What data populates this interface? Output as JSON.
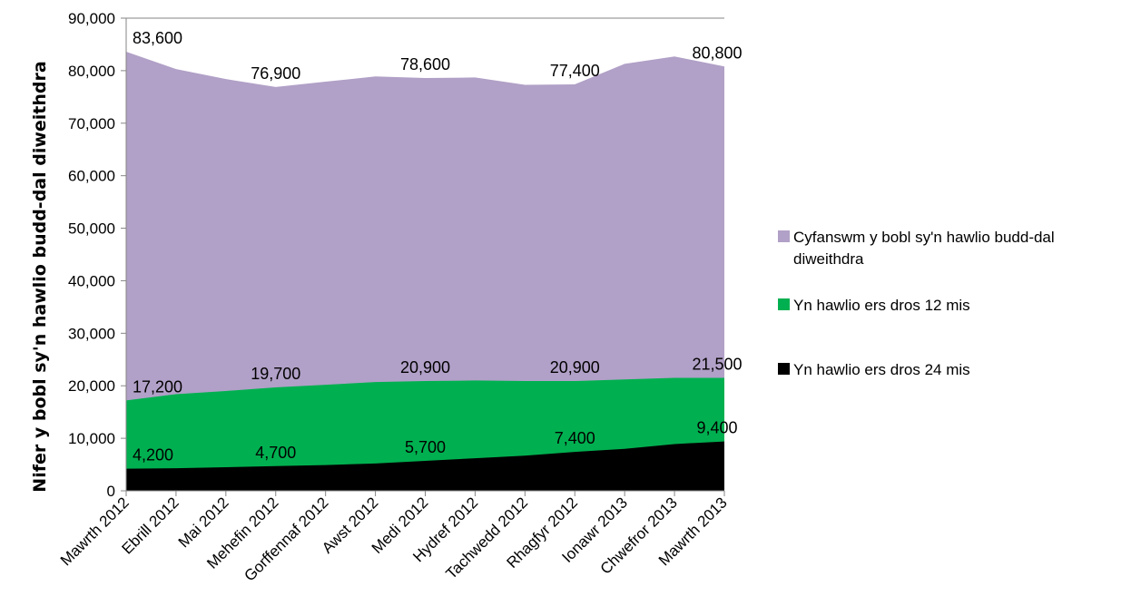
{
  "chart_data": {
    "type": "area",
    "ylabel": "Nifer y bobl sy'n hawlio budd-dal diweithdra",
    "xlabel": "",
    "ylim": [
      0,
      90000
    ],
    "yticks": [
      0,
      10000,
      20000,
      30000,
      40000,
      50000,
      60000,
      70000,
      80000,
      90000
    ],
    "ytick_labels": [
      "0",
      "10,000",
      "20,000",
      "30,000",
      "40,000",
      "50,000",
      "60,000",
      "70,000",
      "80,000",
      "90,000"
    ],
    "categories": [
      "Mawrth 2012",
      "Ebrill 2012",
      "Mai 2012",
      "Mehefin 2012",
      "Gorffennaf 2012",
      "Awst 2012",
      "Medi 2012",
      "Hydref 2012",
      "Tachwedd 2012",
      "Rhagfyr 2012",
      "Ionawr 2013",
      "Chwefror 2013",
      "Mawrth 2013"
    ],
    "grid": "top border line only",
    "legend_position": "right",
    "series": [
      {
        "name": "Cyfanswm y bobl sy'n hawlio budd-dal diweithdra",
        "color": "#b1a0c7",
        "values": [
          83600,
          80300,
          78400,
          76900,
          77900,
          78900,
          78600,
          78700,
          77300,
          77400,
          81300,
          82700,
          80800
        ],
        "labels": [
          {
            "index": 0,
            "text": "83,600"
          },
          {
            "index": 3,
            "text": "76,900"
          },
          {
            "index": 6,
            "text": "78,600"
          },
          {
            "index": 9,
            "text": "77,400"
          },
          {
            "index": 12,
            "text": "80,800"
          }
        ]
      },
      {
        "name": "Yn hawlio ers dros 12 mis",
        "color": "#00b050",
        "values": [
          17200,
          18400,
          19000,
          19700,
          20200,
          20700,
          20900,
          21000,
          20900,
          20900,
          21200,
          21500,
          21500
        ],
        "labels": [
          {
            "index": 0,
            "text": "17,200"
          },
          {
            "index": 3,
            "text": "19,700"
          },
          {
            "index": 6,
            "text": "20,900"
          },
          {
            "index": 9,
            "text": "20,900"
          },
          {
            "index": 12,
            "text": "21,500"
          }
        ]
      },
      {
        "name": "Yn hawlio ers dros 24 mis",
        "color": "#000000",
        "values": [
          4200,
          4300,
          4500,
          4700,
          4900,
          5200,
          5700,
          6200,
          6700,
          7400,
          8000,
          8900,
          9400
        ],
        "labels": [
          {
            "index": 0,
            "text": "4,200"
          },
          {
            "index": 3,
            "text": "4,700"
          },
          {
            "index": 6,
            "text": "5,700"
          },
          {
            "index": 9,
            "text": "7,400"
          },
          {
            "index": 12,
            "text": "9,400"
          }
        ]
      }
    ]
  }
}
